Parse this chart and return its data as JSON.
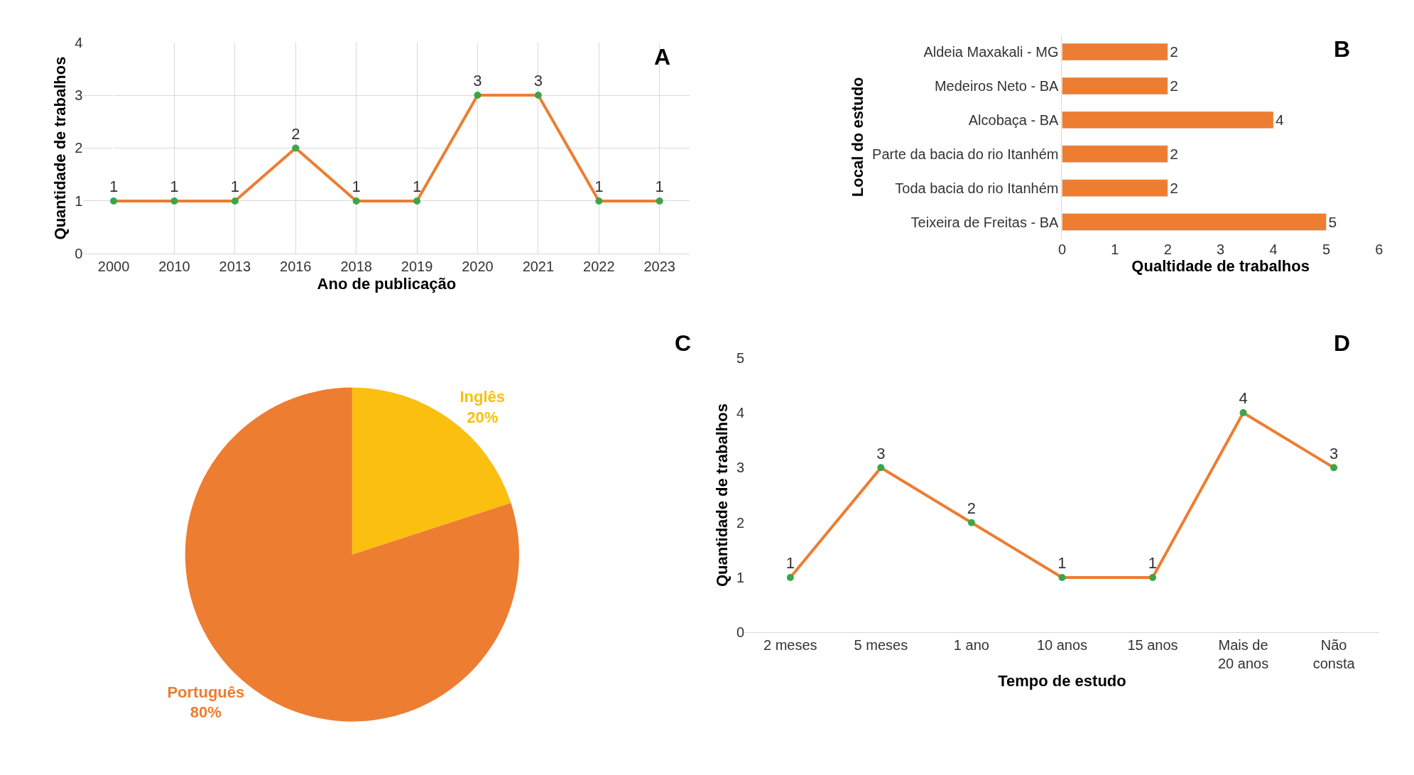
{
  "chart_data": [
    {
      "type": "line",
      "annotations": [
        "A"
      ],
      "xlabel": "Ano de publicação",
      "ylabel": "Quantidade de trabalhos",
      "categories": [
        "2000",
        "2010",
        "2013",
        "2016",
        "2018",
        "2019",
        "2020",
        "2021",
        "2022",
        "2023"
      ],
      "series": [
        {
          "color": "#ed7d31",
          "values": [
            1,
            1,
            1,
            2,
            1,
            1,
            3,
            3,
            1,
            1
          ]
        }
      ],
      "ylim": [
        0,
        4
      ],
      "yticks": [
        0,
        1,
        2,
        3,
        4
      ],
      "grid": true,
      "data_labels": true,
      "marker": "circle",
      "line_style": "solid"
    },
    {
      "type": "bar",
      "orientation": "horizontal",
      "annotations": [
        "B"
      ],
      "xlabel": "Qualtidade de trabalhos",
      "ylabel": "Local do estudo",
      "categories": [
        "Aldeia Maxakali - MG",
        "Medeiros Neto - BA",
        "Alcobaça - BA",
        "Parte da bacia do rio Itanhém",
        "Toda bacia do rio Itanhém",
        "Teixeira de Freitas - BA"
      ],
      "series": [
        {
          "color": "#ed7d31",
          "values": [
            2,
            2,
            4,
            2,
            2,
            5
          ]
        }
      ],
      "xlim": [
        0,
        6
      ],
      "xticks": [
        0,
        1,
        2,
        3,
        4,
        5,
        6
      ],
      "data_labels": true
    },
    {
      "type": "pie",
      "annotations": [
        "C"
      ],
      "categories": [
        "Inglês",
        "Português"
      ],
      "values": [
        20,
        80
      ],
      "value_labels": [
        "20%",
        "80%"
      ],
      "colors": [
        "#fbbf0f",
        "#ed7d31"
      ]
    },
    {
      "type": "line",
      "annotations": [
        "D"
      ],
      "xlabel": "Tempo de estudo",
      "ylabel": "Quantidade de trabalhos",
      "categories": [
        "2 meses",
        "5 meses",
        "1 ano",
        "10 anos",
        "15 anos",
        "Mais de 20 anos",
        "Não consta"
      ],
      "series": [
        {
          "color": "#ed7d31",
          "values": [
            1,
            3,
            2,
            1,
            1,
            4,
            3
          ]
        }
      ],
      "ylim": [
        0,
        5
      ],
      "yticks": [
        0,
        1,
        2,
        3,
        4,
        5
      ],
      "data_labels": true,
      "marker": "circle",
      "line_style": "solid"
    }
  ]
}
